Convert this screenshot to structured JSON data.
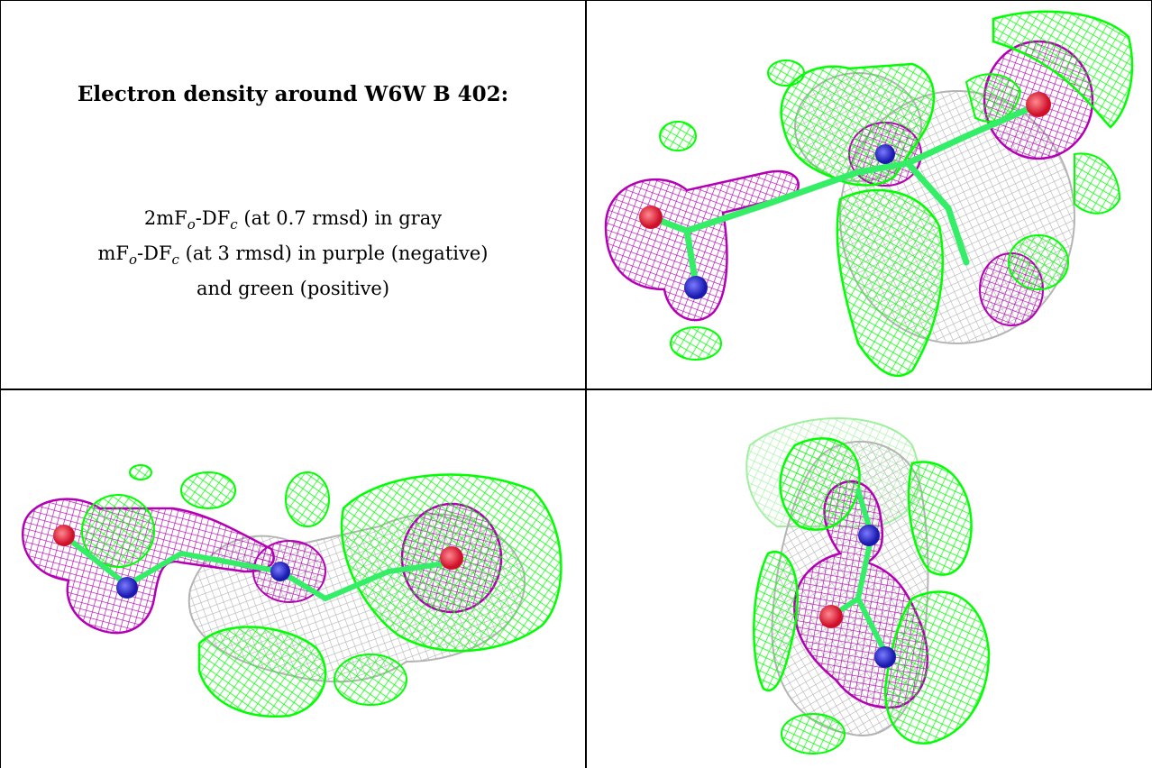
{
  "title": "Electron density around W6W B 402:",
  "legend": {
    "line1": {
      "p1": "2mF",
      "s1": "o",
      "p2": "-DF",
      "s2": "c",
      "p3": " (at 0.7 rmsd) in gray"
    },
    "line2": {
      "p1": "mF",
      "s1": "o",
      "p2": "-DF",
      "s2": "c",
      "p3": " (at 3 rmsd) in purple (negative)"
    },
    "line3": "and green (positive)"
  },
  "colors": {
    "gray": "#b4b4b4",
    "purple": "#b400b4",
    "green": "#00ff00",
    "oxygen": "#ff2a3a",
    "nitrogen": "#3030e0"
  }
}
